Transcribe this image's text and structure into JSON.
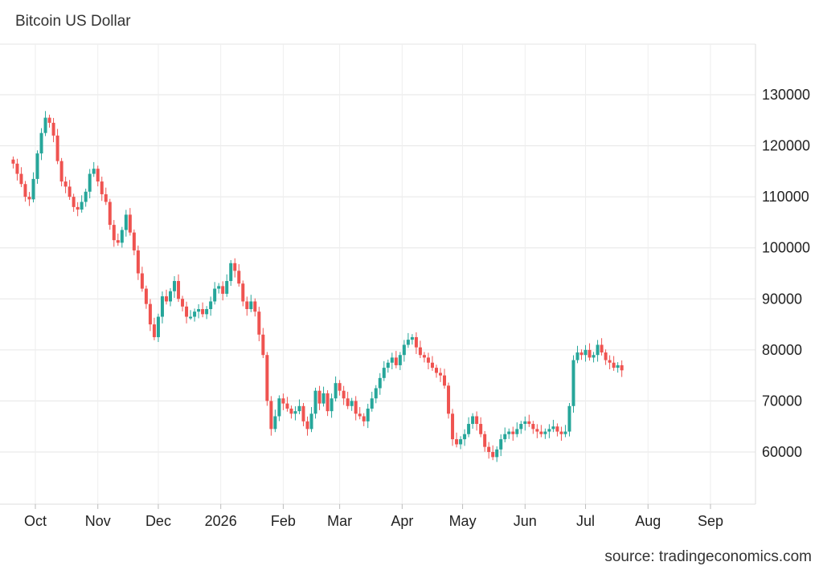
{
  "title": "Bitcoin US Dollar",
  "source": "source: tradingeconomics.com",
  "colors": {
    "up": "#26a69a",
    "down": "#ef5350",
    "grid": "#e6e6e6"
  },
  "chart_data": {
    "type": "candlestick",
    "title": "Bitcoin US Dollar",
    "xlabel": "",
    "ylabel": "",
    "ylim": [
      50000,
      140000
    ],
    "y_ticks": [
      60000,
      70000,
      80000,
      90000,
      100000,
      110000,
      120000,
      130000
    ],
    "y_tick_labels": [
      "60000",
      "70000",
      "80000",
      "90000",
      "100000",
      "110000",
      "120000",
      "130000"
    ],
    "x_ticks": [
      "Oct",
      "Nov",
      "Dec",
      "2026",
      "Feb",
      "Mar",
      "Apr",
      "May",
      "Jun",
      "Jul",
      "Aug",
      "Sep"
    ],
    "grid": true,
    "interval": "2 days",
    "series": [
      {
        "start": "2025-09-20",
        "close": [
          116500,
          114500,
          112500,
          110000,
          109500,
          113500,
          118500,
          122500,
          125500,
          124500,
          122000,
          117000,
          113000,
          112000,
          110000,
          108000,
          107500,
          109000,
          111000,
          114500,
          115500,
          113000,
          110500,
          109000,
          104500,
          101500,
          101000,
          103500,
          106500,
          103000,
          99500,
          95000,
          92000,
          89000,
          85000,
          82500,
          86500,
          90500,
          89500,
          91500,
          93500,
          90000,
          88500,
          86500,
          86500,
          87500,
          88000,
          87000,
          88000,
          89500,
          92000,
          92500,
          91000,
          93500,
          97000,
          95500,
          93000,
          89500,
          88000,
          89500,
          87500,
          83000,
          79000,
          70000,
          64500,
          67000,
          70500,
          69500,
          68500,
          67500,
          68000,
          69000,
          66000,
          64500,
          67500,
          72000,
          69500,
          71500,
          68000,
          70500,
          73500,
          72000,
          70500,
          69000,
          70000,
          67500,
          67000,
          66000,
          68500,
          70500,
          72500,
          74500,
          76500,
          77500,
          78500,
          77000,
          79000,
          81000,
          82000,
          82500,
          80500,
          79000,
          78500,
          77500,
          76500,
          75500,
          75000,
          73000,
          67500,
          62500,
          61500,
          62500,
          63500,
          65500,
          67000,
          65500,
          63500,
          61000,
          60000,
          59000,
          60500,
          62500,
          63500,
          64000,
          63500,
          64500,
          65500,
          66000,
          65500,
          64500,
          64000,
          63500,
          64000,
          64500,
          65000,
          64000,
          63500,
          64000,
          69000,
          78000,
          79500,
          79000,
          80000,
          78500,
          79000,
          81000,
          79500,
          78000,
          77500,
          76500,
          77000,
          76000
        ]
      }
    ]
  }
}
